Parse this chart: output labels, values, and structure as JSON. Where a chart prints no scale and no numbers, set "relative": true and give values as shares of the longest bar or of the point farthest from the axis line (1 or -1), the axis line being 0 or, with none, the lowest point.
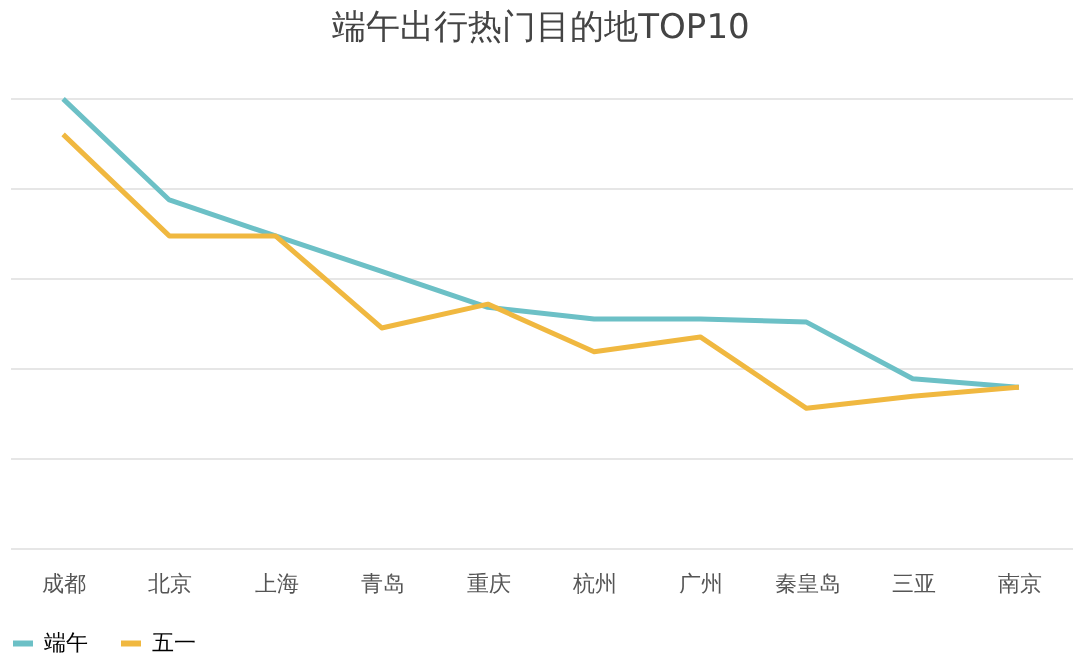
{
  "chart_data": {
    "type": "line",
    "title": "端午出行热门目的地TOP10",
    "relative": true,
    "grid": "y",
    "legend": "bottom",
    "marker": "none",
    "line_style": "solid",
    "categories": [
      "成都",
      "北京",
      "上海",
      "青岛",
      "重庆",
      "杭州",
      "广州",
      "秦皇岛",
      "三亚",
      "南京"
    ],
    "series": [
      {
        "name": "端午",
        "color": "#6cc0c6",
        "values": [
          1,
          0.775,
          0.695,
          0.616,
          0.536,
          0.51,
          0.51,
          0.503,
          0.377,
          0.358
        ]
      },
      {
        "name": "五一",
        "color": "#f0b840",
        "values": [
          0.921,
          0.695,
          0.695,
          0.49,
          0.543,
          0.437,
          0.47,
          0.311,
          0.338,
          0.358
        ]
      }
    ]
  }
}
